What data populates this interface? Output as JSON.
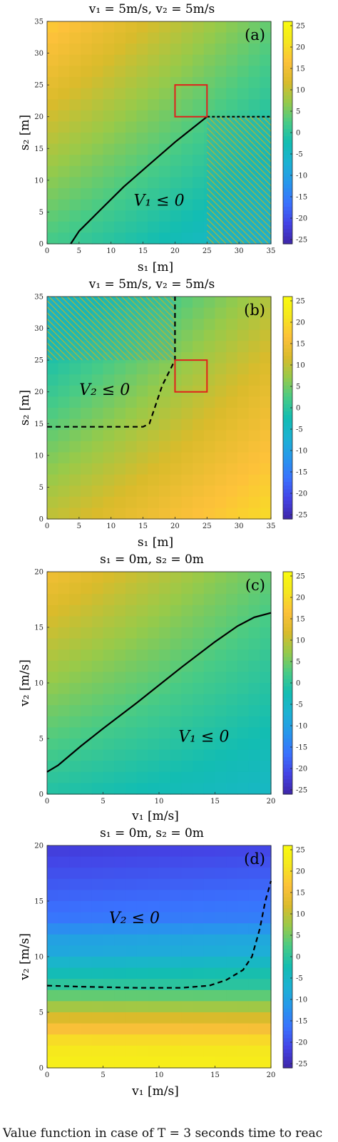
{
  "colors": {
    "colormap": [
      "#3e26a8",
      "#4443e5",
      "#3a71fe",
      "#2796ec",
      "#1cb2d3",
      "#13bdb2",
      "#48cb86",
      "#97ca4a",
      "#dabb2b",
      "#fdc13a",
      "#f5e61f",
      "#f9fb0e"
    ],
    "boundary_line": "#000000",
    "red_box": "#e0201b",
    "hatch": "#e6b800"
  },
  "chart_data": [
    {
      "type": "heatmap",
      "panel_label": "(a)",
      "title": "v₁ = 5m/s, v₂ = 5m/s",
      "xlabel": "s₁ [m]",
      "ylabel": "s₂ [m]",
      "xlim": [
        0,
        35
      ],
      "ylim": [
        0,
        35
      ],
      "xticks": [
        0,
        5,
        10,
        15,
        20,
        25,
        30,
        35
      ],
      "yticks": [
        0,
        5,
        10,
        15,
        20,
        25,
        30,
        35
      ],
      "colorbar": {
        "range": [
          -26,
          26
        ],
        "ticks": [
          25,
          20,
          15,
          10,
          5,
          0,
          -5,
          -10,
          -15,
          -20,
          -25
        ]
      },
      "region_label": "V₁ ≤ 0",
      "region_label_at": [
        17.5,
        6
      ],
      "field": {
        "corners": {
          "bl": 2,
          "br": -7,
          "tl": 18,
          "tr": 4
        }
      },
      "boundary": {
        "style": "solid",
        "points": [
          [
            3.7,
            0
          ],
          [
            5,
            2
          ],
          [
            8,
            5
          ],
          [
            12,
            9
          ],
          [
            16,
            12.5
          ],
          [
            20,
            16
          ],
          [
            22.5,
            18
          ],
          [
            25,
            20
          ]
        ]
      },
      "extra_line": {
        "style": "dashed",
        "points": [
          [
            25,
            20
          ],
          [
            35,
            20
          ]
        ]
      },
      "red_box": {
        "x": [
          20,
          25
        ],
        "y": [
          20,
          25
        ]
      },
      "hatch": {
        "x": [
          25,
          35
        ],
        "y": [
          0,
          20
        ]
      }
    },
    {
      "type": "heatmap",
      "panel_label": "(b)",
      "title": "v₁ = 5m/s, v₂ = 5m/s",
      "xlabel": "s₁ [m]",
      "ylabel": "s₂ [m]",
      "xlim": [
        0,
        35
      ],
      "ylim": [
        0,
        35
      ],
      "xticks": [
        0,
        5,
        10,
        15,
        20,
        25,
        30,
        35
      ],
      "yticks": [
        0,
        5,
        10,
        15,
        20,
        25,
        30,
        35
      ],
      "colorbar": {
        "range": [
          -26,
          26
        ],
        "ticks": [
          25,
          20,
          15,
          10,
          5,
          0,
          -5,
          -10,
          -15,
          -20,
          -25
        ]
      },
      "region_label": "V₂ ≤ 0",
      "region_label_at": [
        9,
        19.5
      ],
      "field": {
        "corners": {
          "bl": 10,
          "br": 20,
          "tl": -6,
          "tr": 9
        }
      },
      "boundary": {
        "style": "dashed",
        "points": [
          [
            0,
            14.5
          ],
          [
            10,
            14.5
          ],
          [
            15,
            14.5
          ],
          [
            16,
            15
          ],
          [
            17,
            18
          ],
          [
            18,
            21
          ],
          [
            19.5,
            24
          ],
          [
            20,
            25
          ],
          [
            20,
            30
          ],
          [
            20,
            35
          ]
        ]
      },
      "red_box": {
        "x": [
          20,
          25
        ],
        "y": [
          20,
          25
        ]
      },
      "hatch": {
        "x": [
          0,
          20
        ],
        "y": [
          25,
          35
        ]
      }
    },
    {
      "type": "heatmap",
      "panel_label": "(c)",
      "title": "s₁ = 0m, s₂ = 0m",
      "xlabel": "v₁ [m/s]",
      "ylabel": "v₂ [m/s]",
      "xlim": [
        0,
        20
      ],
      "ylim": [
        0,
        20
      ],
      "xticks": [
        0,
        5,
        10,
        15,
        20
      ],
      "yticks": [
        0,
        5,
        10,
        15,
        20
      ],
      "colorbar": {
        "range": [
          -26,
          26
        ],
        "ticks": [
          25,
          20,
          15,
          10,
          5,
          0,
          -5,
          -10,
          -15,
          -20,
          -25
        ]
      },
      "region_label": "V₁ ≤ 0",
      "region_label_at": [
        14,
        4.7
      ],
      "field": {
        "corners": {
          "bl": -1,
          "br": -5,
          "tl": 15,
          "tr": 4
        }
      },
      "boundary": {
        "style": "solid",
        "points": [
          [
            0,
            2
          ],
          [
            1,
            2.6
          ],
          [
            3,
            4.3
          ],
          [
            5,
            5.9
          ],
          [
            8,
            8.2
          ],
          [
            10,
            9.8
          ],
          [
            12,
            11.4
          ],
          [
            15,
            13.7
          ],
          [
            17,
            15.1
          ],
          [
            18.5,
            15.9
          ],
          [
            20,
            16.3
          ]
        ]
      }
    },
    {
      "type": "heatmap",
      "panel_label": "(d)",
      "title": "s₁ = 0m, s₂ = 0m",
      "xlabel": "v₁ [m/s]",
      "ylabel": "v₂ [m/s]",
      "xlim": [
        0,
        20
      ],
      "ylim": [
        0,
        20
      ],
      "xticks": [
        0,
        5,
        10,
        15,
        20
      ],
      "yticks": [
        0,
        5,
        10,
        15,
        20
      ],
      "colorbar": {
        "range": [
          -26,
          26
        ],
        "ticks": [
          25,
          20,
          15,
          10,
          5,
          0,
          -5,
          -10,
          -15,
          -20,
          -25
        ]
      },
      "region_label": "V₂ ≤ 0",
      "region_label_at": [
        7.8,
        13
      ],
      "field": {
        "mode": "rows",
        "rows": [
          23,
          22,
          20,
          16,
          12,
          8,
          4,
          0,
          -3,
          -6,
          -9,
          -10,
          -13,
          -16,
          -17,
          -18,
          -19,
          -20,
          -21,
          -22
        ]
      },
      "boundary": {
        "style": "dashed",
        "points": [
          [
            0,
            7.4
          ],
          [
            3,
            7.3
          ],
          [
            8,
            7.2
          ],
          [
            12,
            7.2
          ],
          [
            14.5,
            7.4
          ],
          [
            16,
            7.9
          ],
          [
            17.5,
            8.8
          ],
          [
            18.3,
            10
          ],
          [
            19,
            12.5
          ],
          [
            19.5,
            15
          ],
          [
            20,
            16.8
          ]
        ]
      }
    }
  ],
  "caption": "Value function in case of T = 3 seconds time to reac"
}
